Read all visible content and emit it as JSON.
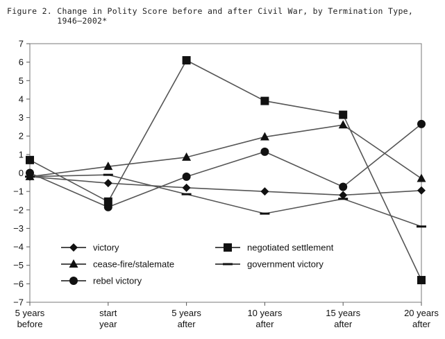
{
  "figure_label": "Figure 2.",
  "figure_title": "Change in Polity Score before and after Civil War, by Termination Type, 1946–2002*",
  "chart_data": {
    "type": "line",
    "title": "Change in Polity Score before and after Civil War, by Termination Type, 1946–2002*",
    "categories": [
      [
        "5 years",
        "before"
      ],
      [
        "start",
        "year"
      ],
      [
        "5 years",
        "after"
      ],
      [
        "10 years",
        "after"
      ],
      [
        "15 years",
        "after"
      ],
      [
        "20 years",
        "after"
      ]
    ],
    "y_ticks": [
      "7",
      "6",
      "5",
      "4",
      "3",
      "2",
      "1",
      "0",
      "−1",
      "−2",
      "−3",
      "−4",
      "−5",
      "−6",
      "−7"
    ],
    "ylim": [
      -7,
      7
    ],
    "grid": false,
    "legend_position": "bottom-left",
    "series": [
      {
        "name": "victory",
        "marker": "diamond",
        "values": [
          -0.2,
          -0.55,
          -0.8,
          -1.0,
          -1.2,
          -0.95
        ]
      },
      {
        "name": "cease-fire/stalemate",
        "marker": "triangle",
        "values": [
          -0.2,
          0.35,
          0.85,
          1.95,
          2.6,
          -0.3
        ]
      },
      {
        "name": "rebel victory",
        "marker": "circle",
        "values": [
          0.0,
          -1.85,
          -0.2,
          1.15,
          -0.75,
          2.65
        ]
      },
      {
        "name": "negotiated settlement",
        "marker": "square",
        "values": [
          0.7,
          -1.55,
          6.1,
          3.9,
          3.15,
          -5.8
        ]
      },
      {
        "name": "government victory",
        "marker": "dash",
        "values": [
          -0.2,
          -0.1,
          -1.15,
          -2.2,
          -1.4,
          -2.9
        ]
      }
    ]
  }
}
